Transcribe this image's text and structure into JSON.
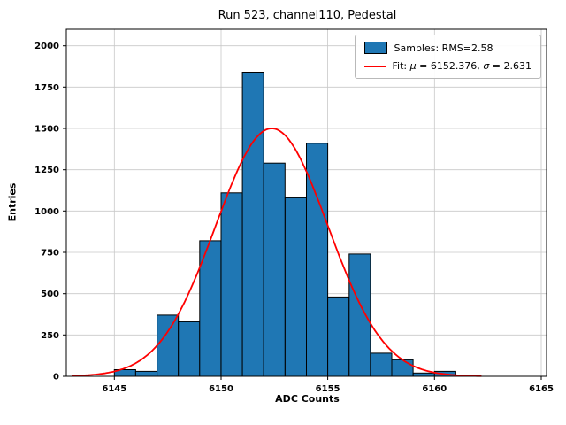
{
  "title": "Run 523, channel110, Pedestal",
  "chart_data": {
    "type": "bar",
    "subtype": "histogram",
    "title": "Run 523, channel110, Pedestal",
    "xlabel": "ADC Counts",
    "ylabel": "Entries",
    "xlim": [
      6142.75,
      6165.25
    ],
    "ylim": [
      0,
      2100
    ],
    "xticks": [
      6145,
      6150,
      6155,
      6160,
      6165
    ],
    "yticks": [
      0,
      250,
      500,
      750,
      1000,
      1250,
      1500,
      1750,
      2000
    ],
    "grid": true,
    "bin_start": 6145,
    "bin_width": 1,
    "counts": [
      40,
      30,
      370,
      330,
      820,
      1110,
      1840,
      1290,
      1080,
      1410,
      480,
      740,
      140,
      100,
      20,
      30
    ],
    "bar_color": "#1f77b4",
    "bar_edge_color": "#000000",
    "fit": {
      "mu": 6152.376,
      "sigma": 2.631,
      "amplitude": 1500,
      "color": "#ff0000",
      "range": [
        6143.0,
        6162.2
      ]
    },
    "legend_position": "upper right"
  },
  "legend": {
    "samples_label": "Samples: RMS=2.58",
    "fit_prefix": "Fit: ",
    "mu_symbol": "μ",
    "mu_text": " = 6152.376, ",
    "sigma_symbol": "σ",
    "sigma_text": " = 2.631"
  }
}
